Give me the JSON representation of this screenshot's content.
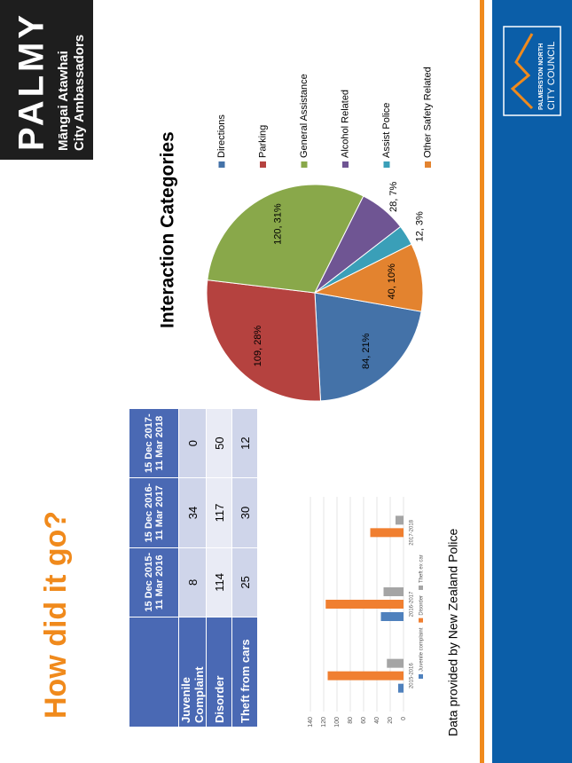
{
  "title": "How did it go?",
  "brand": {
    "name": "PALMY",
    "line1": "Māngai Atawhai",
    "line2": "City Ambassadors"
  },
  "council": {
    "line1": "PALMERSTON NORTH",
    "line2": "CITY COUNCIL"
  },
  "table": {
    "header": [
      "15 Dec 2015-\n11 Mar 2016",
      "15 Dec 2016-\n11 Mar 2017",
      "15 Dec 2017-\n11 Mar 2018"
    ],
    "rows": [
      [
        "Juvenile Complaint",
        8,
        34,
        0
      ],
      [
        "Disorder",
        114,
        117,
        50
      ],
      [
        "Theft from cars",
        25,
        30,
        12
      ]
    ]
  },
  "footer": "Data provided by New Zealand Police",
  "chart_data": [
    {
      "type": "bar",
      "categories": [
        "2015-2016",
        "2016-2017",
        "2017-2018"
      ],
      "series": [
        {
          "name": "Juvenile complaint",
          "color": "#4f81bd",
          "values": [
            8,
            34,
            0
          ]
        },
        {
          "name": "Disorder",
          "color": "#f07f30",
          "values": [
            114,
            117,
            50
          ]
        },
        {
          "name": "Theft ex car",
          "color": "#a5a5a5",
          "values": [
            25,
            30,
            12
          ]
        }
      ],
      "ylim": [
        0,
        140
      ],
      "yticks": [
        0,
        20,
        40,
        60,
        80,
        100,
        120,
        140
      ],
      "grid": true
    },
    {
      "type": "pie",
      "title": "Interaction Categories",
      "categories": [
        "Directions",
        "Parking",
        "General Assistance",
        "Alcohol Related",
        "Assist Police",
        "Other Safety Related"
      ],
      "values": [
        84,
        109,
        120,
        28,
        12,
        40
      ],
      "value_labels": [
        "84, 21%",
        "109, 28%",
        "120, 31%",
        "28, 7%",
        "12, 3%",
        "40, 10%"
      ],
      "colors": [
        "#4472a8",
        "#b5423f",
        "#89a84a",
        "#6f5593",
        "#3a9fb8",
        "#e3832f"
      ]
    }
  ]
}
